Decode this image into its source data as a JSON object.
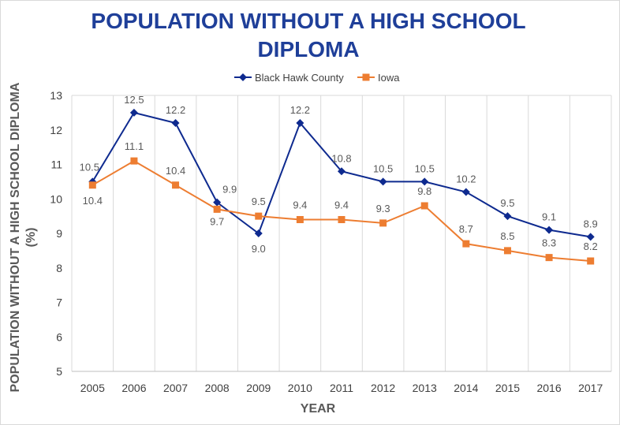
{
  "chart_data": {
    "type": "line",
    "title": "POPULATION WITHOUT A HIGH SCHOOL DIPLOMA",
    "xlabel": "YEAR",
    "ylabel": "POPULATION WITHOUT A HIGH SCHOOL DIPLOMA (%)",
    "categories": [
      "2005",
      "2006",
      "2007",
      "2008",
      "2009",
      "2010",
      "2011",
      "2012",
      "2013",
      "2014",
      "2015",
      "2016",
      "2017"
    ],
    "ylim": [
      5,
      13
    ],
    "yticks": [
      5,
      6,
      7,
      8,
      9,
      10,
      11,
      12,
      13
    ],
    "grid": "vertical",
    "legend": "top",
    "series": [
      {
        "name": "Black Hawk County",
        "values": [
          10.5,
          12.5,
          12.2,
          9.9,
          9.0,
          12.2,
          10.8,
          10.5,
          10.5,
          10.2,
          9.5,
          9.1,
          8.9
        ],
        "labels": [
          "10.5",
          "12.5",
          "12.2",
          "9.9",
          "9.0",
          "12.2",
          "10.8",
          "10.5",
          "10.5",
          "10.2",
          "9.5",
          "9.1",
          "8.9"
        ],
        "color": "#0e2a8f",
        "marker": "diamond"
      },
      {
        "name": "Iowa",
        "values": [
          10.4,
          11.1,
          10.4,
          9.7,
          9.5,
          9.4,
          9.4,
          9.3,
          9.8,
          8.7,
          8.5,
          8.3,
          8.2
        ],
        "labels": [
          "10.4",
          "11.1",
          "10.4",
          "9.7",
          "9.5",
          "9.4",
          "9.4",
          "9.3",
          "9.8",
          "8.7",
          "8.5",
          "8.3",
          "8.2"
        ],
        "color": "#ed7d31",
        "marker": "square"
      }
    ]
  }
}
